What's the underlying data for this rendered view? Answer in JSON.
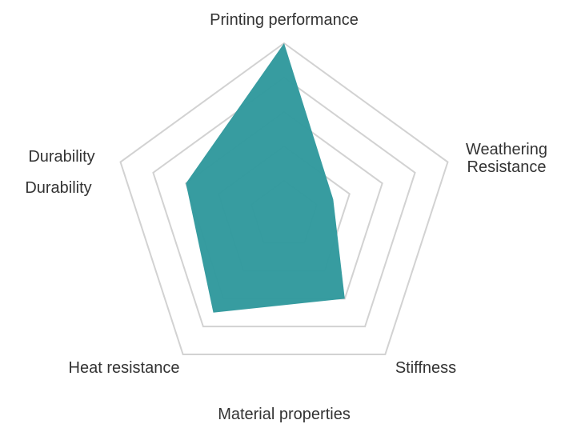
{
  "chart_data": {
    "type": "radar",
    "title": "Material properties",
    "categories": [
      "Printing performance",
      "Weathering Resistance",
      "Stiffness",
      "Heat resistance",
      "Durability"
    ],
    "series": [
      {
        "name": "Durability",
        "color": "#339a9e",
        "values": [
          5,
          1.5,
          3,
          3.5,
          3
        ]
      }
    ],
    "rlim": [
      0,
      5
    ],
    "rticks": [
      1,
      2,
      3,
      4,
      5
    ],
    "grid": true
  }
}
